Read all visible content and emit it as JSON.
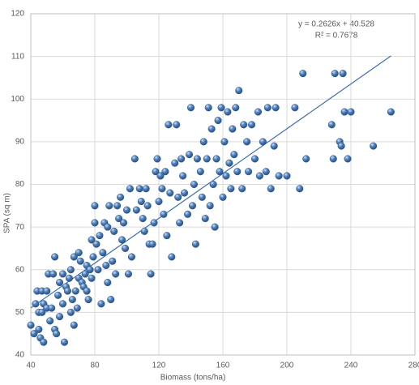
{
  "chart_data": {
    "type": "scatter",
    "x_label": "Biomass (tons/ha)",
    "y_label": "SPA (sq m)",
    "xlim": [
      40,
      280
    ],
    "xticks": [
      40,
      80,
      120,
      160,
      200,
      240,
      280
    ],
    "ylim": [
      40,
      120
    ],
    "yticks": [
      40,
      50,
      60,
      70,
      80,
      90,
      100,
      110,
      120
    ],
    "grid": true,
    "color": "#4f81bd",
    "trendline": {
      "slope": 0.2626,
      "intercept": 40.528,
      "equation": "y = 0.2626x + 40.528",
      "r2": 0.7678,
      "r2_label": "R² = 0.7678",
      "color": "#3d6fb0"
    },
    "series": [
      {
        "name": "SPA",
        "color": "#4f81bd",
        "x": [
          40,
          42,
          43,
          44,
          45,
          45,
          46,
          47,
          47,
          48,
          48,
          50,
          50,
          51,
          52,
          53,
          54,
          55,
          55,
          56,
          57,
          58,
          58,
          60,
          60,
          61,
          62,
          63,
          64,
          65,
          65,
          66,
          67,
          67,
          68,
          69,
          70,
          70,
          71,
          72,
          73,
          74,
          75,
          75,
          76,
          77,
          78,
          78,
          79,
          80,
          80,
          81,
          82,
          83,
          84,
          85,
          86,
          87,
          88,
          88,
          89,
          90,
          91,
          92,
          93,
          94,
          95,
          96,
          97,
          98,
          99,
          100,
          101,
          102,
          103,
          105,
          106,
          108,
          109,
          110,
          111,
          112,
          113,
          114,
          115,
          116,
          117,
          118,
          119,
          120,
          121,
          122,
          123,
          124,
          125,
          126,
          127,
          128,
          130,
          131,
          132,
          133,
          134,
          135,
          136,
          138,
          139,
          140,
          141,
          142,
          143,
          144,
          146,
          147,
          148,
          149,
          150,
          151,
          152,
          153,
          154,
          155,
          156,
          157,
          158,
          159,
          160,
          161,
          162,
          163,
          164,
          165,
          166,
          167,
          168,
          169,
          170,
          172,
          173,
          175,
          176,
          178,
          180,
          182,
          183,
          185,
          187,
          188,
          190,
          192,
          193,
          195,
          200,
          205,
          208,
          210,
          212,
          228,
          229,
          230,
          233,
          234,
          235,
          236,
          238,
          240,
          254,
          265
        ],
        "values": [
          47,
          45,
          52,
          55,
          50,
          46,
          44,
          50,
          55,
          43,
          52,
          51,
          55,
          59,
          48,
          51,
          59,
          46,
          63,
          45,
          54,
          49,
          57,
          59,
          52,
          43,
          56,
          55,
          58,
          60,
          50,
          53,
          47,
          63,
          55,
          51,
          58,
          64,
          62,
          57,
          56,
          59,
          55,
          61,
          53,
          60,
          58,
          67,
          63,
          75,
          71,
          66,
          60,
          68,
          52,
          64,
          71,
          61,
          70,
          57,
          75,
          53,
          62,
          69,
          59,
          75,
          72,
          77,
          67,
          71,
          65,
          74,
          59,
          79,
          63,
          86,
          74,
          79,
          76,
          72,
          69,
          79,
          75,
          66,
          59,
          66,
          71,
          83,
          86,
          76,
          82,
          79,
          73,
          83,
          68,
          94,
          78,
          63,
          85,
          94,
          77,
          71,
          86,
          82,
          78,
          73,
          87,
          98,
          75,
          80,
          66,
          86,
          83,
          77,
          90,
          72,
          86,
          98,
          75,
          93,
          80,
          70,
          86,
          95,
          83,
          98,
          77,
          90,
          82,
          97,
          85,
          79,
          93,
          87,
          98,
          83,
          102,
          79,
          94,
          90,
          83,
          94,
          86,
          97,
          82,
          90,
          83,
          98,
          79,
          89,
          98,
          82,
          82,
          98,
          79,
          106,
          86,
          94,
          86,
          106,
          90,
          89,
          106,
          97,
          86,
          97,
          89,
          97
        ]
      }
    ]
  }
}
